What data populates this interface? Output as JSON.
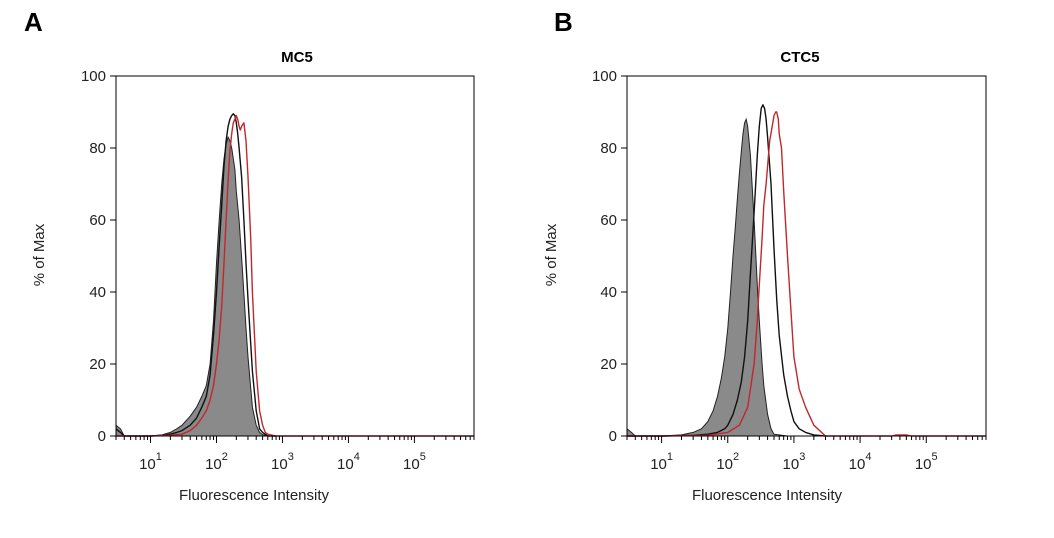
{
  "colors": {
    "filled": "#8a8a8a",
    "filled_stroke": "#222222",
    "black_line": "#111111",
    "red_line": "#c0282d",
    "frame": "#000000"
  },
  "chart_data": [
    {
      "type": "area",
      "panel_letter": "A",
      "title": "MC5",
      "xlabel": "Fluorescence Intensity",
      "ylabel": "% of Max",
      "x_scale": "log",
      "xlim": [
        3,
        800000
      ],
      "ylim": [
        0,
        100
      ],
      "yticks": [
        0,
        20,
        40,
        60,
        80,
        100
      ],
      "xticks": [
        {
          "value": 10,
          "base": "10",
          "exp": "1"
        },
        {
          "value": 100,
          "base": "10",
          "exp": "2"
        },
        {
          "value": 1000,
          "base": "10",
          "exp": "3"
        },
        {
          "value": 10000,
          "base": "10",
          "exp": "4"
        },
        {
          "value": 100000,
          "base": "10",
          "exp": "5"
        }
      ],
      "series": [
        {
          "style": "filled",
          "x": [
            3,
            3.5,
            4,
            6,
            10,
            15,
            20,
            25,
            30,
            40,
            50,
            60,
            70,
            80,
            90,
            100,
            110,
            120,
            130,
            140,
            150,
            160,
            170,
            180,
            190,
            200,
            220,
            250,
            280,
            300,
            350,
            400,
            450,
            500,
            600,
            800
          ],
          "y": [
            3,
            2,
            0,
            0,
            0,
            0.3,
            1,
            2,
            3,
            5.5,
            8,
            11,
            14,
            20,
            32,
            48,
            60,
            70,
            77,
            81,
            83,
            82,
            80,
            77,
            74,
            68,
            60,
            45,
            30,
            22,
            8,
            3,
            1,
            0.4,
            0,
            0
          ]
        },
        {
          "style": "black",
          "x": [
            3,
            3.5,
            4,
            6,
            10,
            15,
            20,
            25,
            30,
            40,
            50,
            60,
            70,
            80,
            90,
            100,
            110,
            120,
            130,
            140,
            150,
            160,
            170,
            180,
            190,
            200,
            210,
            220,
            240,
            260,
            280,
            300,
            350,
            400,
            450,
            500,
            600,
            800
          ],
          "y": [
            2,
            1,
            0,
            0,
            0,
            0.2,
            0.5,
            1,
            1.5,
            3,
            5,
            8,
            11,
            17,
            28,
            40,
            53,
            64,
            75,
            82,
            86,
            88,
            89,
            89.5,
            89,
            87,
            84,
            80,
            72,
            60,
            48,
            38,
            18,
            7,
            2,
            1,
            0,
            0
          ]
        },
        {
          "style": "red",
          "x": [
            3,
            4,
            10,
            20,
            30,
            40,
            50,
            60,
            70,
            80,
            90,
            100,
            110,
            120,
            130,
            140,
            150,
            160,
            170,
            180,
            190,
            200,
            210,
            220,
            230,
            240,
            260,
            280,
            300,
            330,
            350,
            400,
            450,
            500,
            550,
            600,
            800,
            300000,
            800000
          ],
          "y": [
            0,
            0,
            0,
            0.2,
            0.5,
            1.5,
            3,
            5,
            7,
            10,
            14,
            20,
            27,
            36,
            48,
            60,
            71,
            79,
            84,
            87,
            88,
            89,
            88,
            86,
            85,
            86,
            87,
            82,
            72,
            55,
            40,
            18,
            7,
            3,
            1,
            0.5,
            0,
            0,
            0
          ]
        }
      ]
    },
    {
      "type": "area",
      "panel_letter": "B",
      "title": "CTC5",
      "xlabel": "Fluorescence Intensity",
      "ylabel": "% of Max",
      "x_scale": "log",
      "xlim": [
        3,
        800000
      ],
      "ylim": [
        0,
        100
      ],
      "yticks": [
        0,
        20,
        40,
        60,
        80,
        100
      ],
      "xticks": [
        {
          "value": 10,
          "base": "10",
          "exp": "1"
        },
        {
          "value": 100,
          "base": "10",
          "exp": "2"
        },
        {
          "value": 1000,
          "base": "10",
          "exp": "3"
        },
        {
          "value": 10000,
          "base": "10",
          "exp": "4"
        },
        {
          "value": 100000,
          "base": "10",
          "exp": "5"
        }
      ],
      "series": [
        {
          "style": "filled",
          "x": [
            3,
            3.5,
            4,
            6,
            10,
            20,
            30,
            40,
            50,
            60,
            70,
            80,
            90,
            100,
            110,
            120,
            130,
            140,
            150,
            160,
            170,
            180,
            190,
            200,
            220,
            250,
            280,
            300,
            330,
            350,
            400,
            450,
            500,
            800
          ],
          "y": [
            2,
            1,
            0,
            0,
            0,
            0.3,
            1,
            2,
            4,
            7,
            11,
            16,
            22,
            30,
            40,
            50,
            58,
            66,
            73,
            79,
            84,
            87,
            88,
            86,
            78,
            60,
            42,
            32,
            20,
            14,
            6,
            2,
            0.5,
            0
          ]
        },
        {
          "style": "black",
          "x": [
            3,
            4,
            10,
            30,
            50,
            70,
            90,
            100,
            120,
            140,
            160,
            180,
            200,
            220,
            250,
            280,
            300,
            320,
            340,
            360,
            380,
            400,
            450,
            500,
            550,
            600,
            700,
            800,
            900,
            1000,
            1200,
            1500,
            2000,
            3000
          ],
          "y": [
            0,
            0,
            0,
            0.2,
            0.5,
            1,
            2,
            3,
            6,
            10,
            15,
            22,
            32,
            45,
            62,
            78,
            86,
            91,
            92,
            91,
            88,
            83,
            70,
            52,
            38,
            28,
            17,
            11,
            7,
            4,
            2,
            1,
            0.3,
            0
          ]
        },
        {
          "style": "red",
          "x": [
            3,
            4,
            10,
            50,
            100,
            150,
            200,
            250,
            280,
            300,
            330,
            350,
            380,
            400,
            430,
            460,
            500,
            530,
            550,
            580,
            600,
            650,
            700,
            800,
            900,
            1000,
            1200,
            1500,
            2000,
            3000,
            30000,
            35000,
            40000,
            50000,
            60000,
            800000
          ],
          "y": [
            0,
            0,
            0,
            0.2,
            1,
            3,
            8,
            20,
            32,
            42,
            55,
            64,
            70,
            75,
            82,
            85,
            89,
            90,
            90,
            88,
            84,
            80,
            68,
            50,
            35,
            22,
            13,
            8,
            3,
            0,
            0,
            0.3,
            0.3,
            0.3,
            0,
            0
          ]
        }
      ]
    }
  ]
}
